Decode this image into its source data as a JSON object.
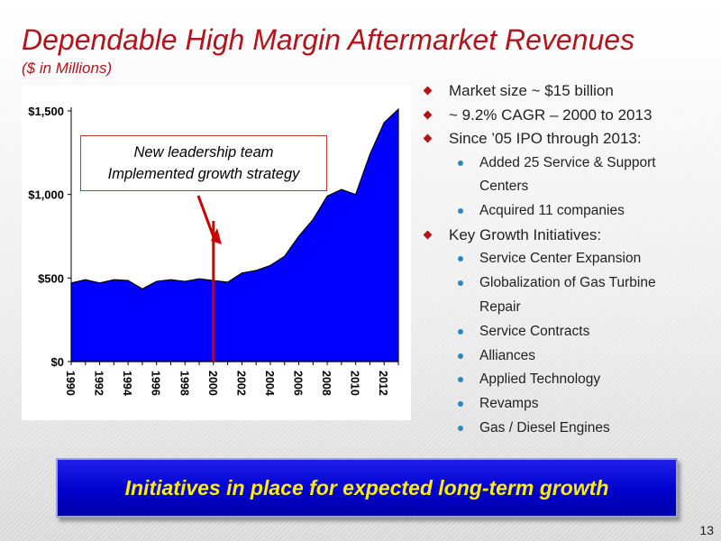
{
  "title": "Dependable High Margin Aftermarket Revenues",
  "subtitle": "($ in Millions)",
  "callout": {
    "line1": "New leadership team",
    "line2": "Implemented growth strategy"
  },
  "bullets": [
    {
      "level": 1,
      "text": "Market size ~ $15 billion"
    },
    {
      "level": 1,
      "text": "~ 9.2% CAGR – 2000 to 2013"
    },
    {
      "level": 1,
      "text": "Since ’05 IPO through 2013:"
    },
    {
      "level": 2,
      "text": "Added 25 Service & Support"
    },
    {
      "level": 2,
      "text": "Centers",
      "continuation": true
    },
    {
      "level": 2,
      "text": "Acquired 11 companies"
    },
    {
      "level": 1,
      "text": "Key Growth Initiatives:"
    },
    {
      "level": 2,
      "text": "Service Center Expansion"
    },
    {
      "level": 2,
      "text": "Globalization of Gas Turbine"
    },
    {
      "level": 2,
      "text": "Repair",
      "continuation": true
    },
    {
      "level": 2,
      "text": "Service Contracts"
    },
    {
      "level": 2,
      "text": "Alliances"
    },
    {
      "level": 2,
      "text": "Applied Technology"
    },
    {
      "level": 2,
      "text": "Revamps"
    },
    {
      "level": 2,
      "text": "Gas / Diesel Engines"
    }
  ],
  "banner": "Initiatives in place for expected long-term growth",
  "page_number": "13",
  "colors": {
    "title": "#b3141c",
    "area_fill": "#0000ff",
    "marker_line": "#cc0000",
    "banner_bg": "#0000cc",
    "banner_text": "#ffee00",
    "bullet_level1": "#b3141c",
    "bullet_level2": "#2e86c1"
  },
  "chart_data": {
    "type": "area",
    "title": "",
    "xlabel": "",
    "ylabel": "",
    "x": [
      1990,
      1991,
      1992,
      1993,
      1994,
      1995,
      1996,
      1997,
      1998,
      1999,
      2000,
      2001,
      2002,
      2003,
      2004,
      2005,
      2006,
      2007,
      2008,
      2009,
      2010,
      2011,
      2012,
      2013
    ],
    "values": [
      470,
      490,
      470,
      490,
      485,
      435,
      480,
      490,
      480,
      495,
      485,
      475,
      530,
      545,
      575,
      630,
      750,
      850,
      990,
      1030,
      1000,
      1240,
      1430,
      1510
    ],
    "ylim": [
      0,
      1500
    ],
    "yticks": [
      0,
      500,
      1000,
      1500
    ],
    "ytick_labels": [
      "$0",
      "$500",
      "$1,000",
      "$1,500"
    ],
    "xtick_labels": [
      "1990",
      "1992",
      "1994",
      "1996",
      "1998",
      "2000",
      "2002",
      "2004",
      "2006",
      "2008",
      "2010",
      "2012"
    ],
    "marker_year": 2000,
    "grid": false,
    "legend": false
  }
}
